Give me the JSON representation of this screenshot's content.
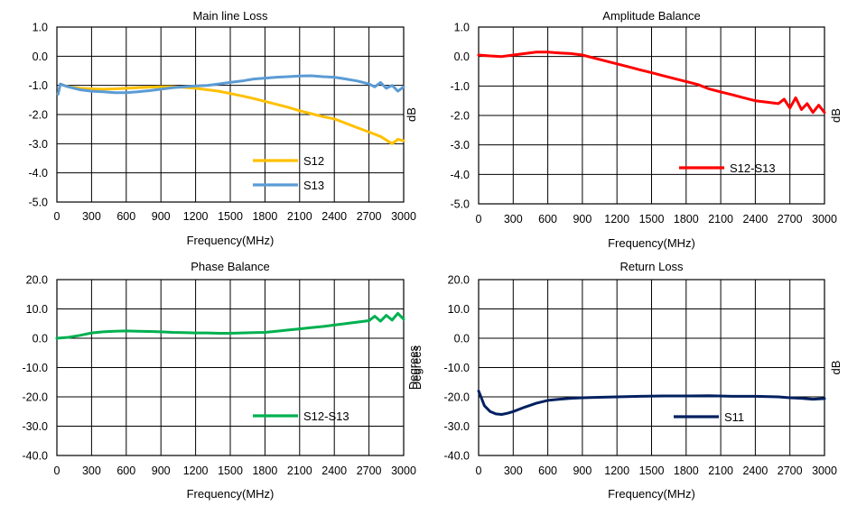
{
  "chart_data": [
    {
      "id": "main-line-loss",
      "type": "line",
      "title": "Main line Loss",
      "xlabel": "Frequency(MHz)",
      "ylabel_left": "",
      "ylabel_right": "dB",
      "xlim": [
        0,
        3000
      ],
      "ylim": [
        -5,
        1
      ],
      "xticks": [
        "0",
        "300",
        "600",
        "900",
        "1200",
        "1500",
        "1800",
        "2100",
        "2400",
        "2700",
        "3000"
      ],
      "yticks": [
        "1.0",
        "0.0",
        "-1.0",
        "-2.0",
        "-3.0",
        "-4.0",
        "-5.0"
      ],
      "grid": true,
      "legend_position": "bottom-right",
      "series": [
        {
          "name": "S12",
          "color": "#FFC000",
          "x": [
            10,
            30,
            60,
            100,
            200,
            300,
            400,
            500,
            600,
            700,
            800,
            900,
            1000,
            1100,
            1200,
            1300,
            1400,
            1500,
            1600,
            1700,
            1800,
            1900,
            2000,
            2100,
            2200,
            2300,
            2400,
            2500,
            2600,
            2700,
            2800,
            2900,
            2950,
            3000
          ],
          "y": [
            -1.3,
            -0.95,
            -1.0,
            -1.05,
            -1.1,
            -1.12,
            -1.13,
            -1.12,
            -1.1,
            -1.08,
            -1.06,
            -1.05,
            -1.05,
            -1.07,
            -1.1,
            -1.15,
            -1.2,
            -1.28,
            -1.36,
            -1.45,
            -1.55,
            -1.65,
            -1.75,
            -1.87,
            -1.97,
            -2.07,
            -2.15,
            -2.3,
            -2.45,
            -2.6,
            -2.75,
            -3.0,
            -2.85,
            -2.9
          ]
        },
        {
          "name": "S13",
          "color": "#5B9BD5",
          "x": [
            10,
            30,
            60,
            100,
            200,
            300,
            400,
            500,
            600,
            700,
            800,
            900,
            1000,
            1100,
            1200,
            1300,
            1400,
            1500,
            1600,
            1700,
            1800,
            1900,
            2000,
            2100,
            2200,
            2300,
            2400,
            2500,
            2600,
            2700,
            2750,
            2800,
            2850,
            2900,
            2950,
            3000
          ],
          "y": [
            -1.3,
            -0.95,
            -1.0,
            -1.05,
            -1.15,
            -1.2,
            -1.22,
            -1.25,
            -1.25,
            -1.22,
            -1.18,
            -1.13,
            -1.08,
            -1.05,
            -1.02,
            -1.0,
            -0.95,
            -0.9,
            -0.85,
            -0.78,
            -0.75,
            -0.72,
            -0.7,
            -0.68,
            -0.67,
            -0.7,
            -0.72,
            -0.78,
            -0.85,
            -0.95,
            -1.05,
            -0.9,
            -1.1,
            -1.0,
            -1.2,
            -1.05
          ]
        }
      ]
    },
    {
      "id": "amplitude-balance",
      "type": "line",
      "title": "Amplitude Balance",
      "xlabel": "Frequency(MHz)",
      "ylabel_left": "",
      "ylabel_right": "dB",
      "xlim": [
        0,
        3000
      ],
      "ylim": [
        -5,
        1
      ],
      "xticks": [
        "0",
        "300",
        "600",
        "900",
        "1200",
        "1500",
        "1800",
        "2100",
        "2400",
        "2700",
        "3000"
      ],
      "yticks": [
        "1.0",
        "0.0",
        "-1.0",
        "-2.0",
        "-3.0",
        "-4.0",
        "-5.0"
      ],
      "grid": true,
      "legend_position": "bottom-right",
      "series": [
        {
          "name": "S12-S13",
          "color": "#FF0000",
          "x": [
            0,
            100,
            200,
            300,
            400,
            500,
            600,
            700,
            800,
            900,
            1000,
            1100,
            1200,
            1300,
            1400,
            1500,
            1600,
            1700,
            1800,
            1900,
            2000,
            2100,
            2200,
            2300,
            2400,
            2500,
            2600,
            2650,
            2700,
            2750,
            2800,
            2850,
            2900,
            2950,
            3000
          ],
          "y": [
            0.05,
            0.02,
            0.0,
            0.05,
            0.1,
            0.15,
            0.15,
            0.12,
            0.1,
            0.05,
            -0.05,
            -0.15,
            -0.25,
            -0.35,
            -0.45,
            -0.55,
            -0.65,
            -0.75,
            -0.85,
            -0.95,
            -1.1,
            -1.2,
            -1.3,
            -1.4,
            -1.5,
            -1.55,
            -1.6,
            -1.45,
            -1.75,
            -1.4,
            -1.8,
            -1.6,
            -1.9,
            -1.65,
            -1.9
          ]
        }
      ]
    },
    {
      "id": "phase-balance",
      "type": "line",
      "title": "Phase Balance",
      "xlabel": "Frequency(MHz)",
      "ylabel_left": "",
      "ylabel_right": "Degrees",
      "xlim": [
        0,
        3000
      ],
      "ylim": [
        -40,
        20
      ],
      "xticks": [
        "0",
        "300",
        "600",
        "900",
        "1200",
        "1500",
        "1800",
        "2100",
        "2400",
        "2700",
        "3000"
      ],
      "yticks": [
        "20.0",
        "10.0",
        "0.0",
        "-10.0",
        "-20.0",
        "-30.0",
        "-40.0"
      ],
      "grid": true,
      "legend_position": "bottom-right",
      "series": [
        {
          "name": "S12-S13",
          "color": "#00B050",
          "x": [
            0,
            100,
            200,
            300,
            400,
            500,
            600,
            700,
            800,
            900,
            1000,
            1100,
            1200,
            1300,
            1400,
            1500,
            1600,
            1700,
            1800,
            1900,
            2000,
            2100,
            2200,
            2300,
            2400,
            2500,
            2600,
            2700,
            2750,
            2800,
            2850,
            2900,
            2950,
            3000
          ],
          "y": [
            0.0,
            0.3,
            1.0,
            1.8,
            2.2,
            2.4,
            2.5,
            2.4,
            2.3,
            2.2,
            2.0,
            1.9,
            1.8,
            1.8,
            1.7,
            1.7,
            1.8,
            1.9,
            2.0,
            2.4,
            2.8,
            3.2,
            3.6,
            4.0,
            4.5,
            5.0,
            5.5,
            6.0,
            7.5,
            5.8,
            7.8,
            6.2,
            8.5,
            6.5
          ]
        }
      ]
    },
    {
      "id": "return-loss",
      "type": "line",
      "title": "Return Loss",
      "xlabel": "Frequency(MHz)",
      "ylabel_left": "Degrees",
      "ylabel_right": "dB",
      "xlim": [
        0,
        3000
      ],
      "ylim": [
        -40,
        20
      ],
      "xticks": [
        "0",
        "300",
        "600",
        "900",
        "1200",
        "1500",
        "1800",
        "2100",
        "2400",
        "2700",
        "3000"
      ],
      "yticks": [
        "20.0",
        "10.0",
        "0.0",
        "-10.0",
        "-20.0",
        "-30.0",
        "-40.0"
      ],
      "grid": true,
      "legend_position": "bottom-right",
      "series": [
        {
          "name": "S11",
          "color": "#002060",
          "x": [
            0,
            20,
            50,
            100,
            150,
            200,
            250,
            300,
            400,
            500,
            600,
            700,
            800,
            900,
            1000,
            1200,
            1400,
            1600,
            1800,
            2000,
            2200,
            2400,
            2600,
            2700,
            2800,
            2900,
            3000
          ],
          "y": [
            -18,
            -20,
            -23,
            -25,
            -25.8,
            -26,
            -25.6,
            -25,
            -23.5,
            -22.2,
            -21.2,
            -20.8,
            -20.5,
            -20.3,
            -20.2,
            -20,
            -19.8,
            -19.7,
            -19.7,
            -19.6,
            -19.8,
            -19.8,
            -20,
            -20.3,
            -20.5,
            -20.8,
            -20.6
          ]
        }
      ]
    }
  ]
}
